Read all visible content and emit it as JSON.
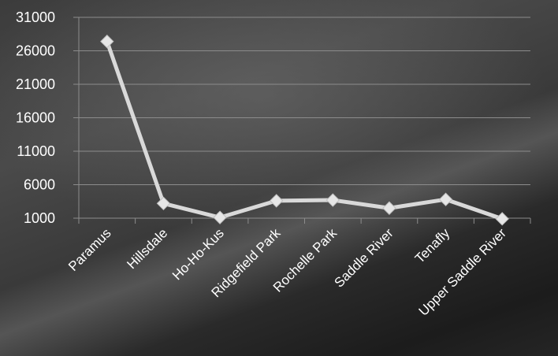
{
  "chart_data": {
    "type": "line",
    "categories": [
      "Paramus",
      "Hillsdale",
      "Ho-Ho-Kus",
      "Ridgefield Park",
      "Rochelle Park",
      "Saddle River",
      "Tenafly",
      "Upper Saddle River"
    ],
    "values": [
      27400,
      3200,
      1100,
      3600,
      3700,
      2500,
      3800,
      900
    ],
    "ylim": [
      1000,
      31000
    ],
    "yticks": [
      1000,
      6000,
      11000,
      16000,
      21000,
      26000,
      31000
    ],
    "title": "",
    "xlabel": "",
    "ylabel": "",
    "grid": true,
    "colors": {
      "line": "#d9d9d9",
      "marker": "#e6e6e6",
      "grid": "#8c8c8c",
      "text": "#ffffff"
    }
  }
}
